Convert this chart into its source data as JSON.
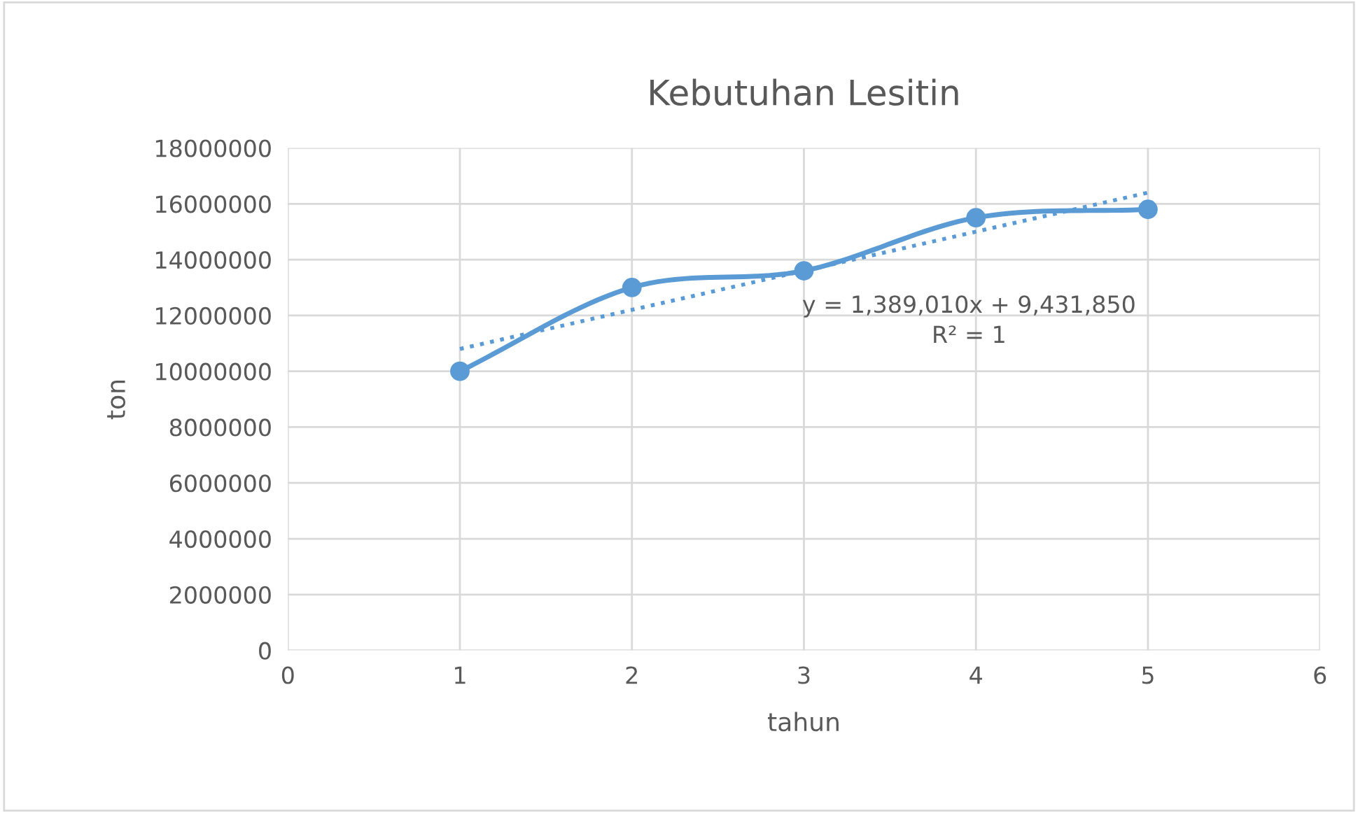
{
  "chart_data": {
    "type": "line",
    "title": "Kebutuhan Lesitin",
    "xlabel": "tahun",
    "ylabel": "ton",
    "series": [
      {
        "color": "#5b9bd5",
        "x": [
          1,
          2,
          3,
          4,
          5
        ],
        "values": [
          10000000,
          13000000,
          13600000,
          15500000,
          15800000
        ],
        "marker": "circle",
        "line_style": "solid"
      },
      {
        "color": "#5b9bd5",
        "x": [
          1,
          5
        ],
        "values": [
          10800000,
          16400000
        ],
        "marker": "none",
        "line_style": "dotted"
      }
    ],
    "annotations": [
      "y = 1,389,010x + 9,431,850",
      "R² = 1"
    ],
    "xlim": [
      0,
      6
    ],
    "xticks": [
      0,
      1,
      2,
      3,
      4,
      5,
      6
    ],
    "ylim": [
      0,
      18000000
    ],
    "yticks": [
      0,
      2000000,
      4000000,
      6000000,
      8000000,
      10000000,
      12000000,
      14000000,
      16000000,
      18000000
    ],
    "grid": true,
    "legend": false
  }
}
